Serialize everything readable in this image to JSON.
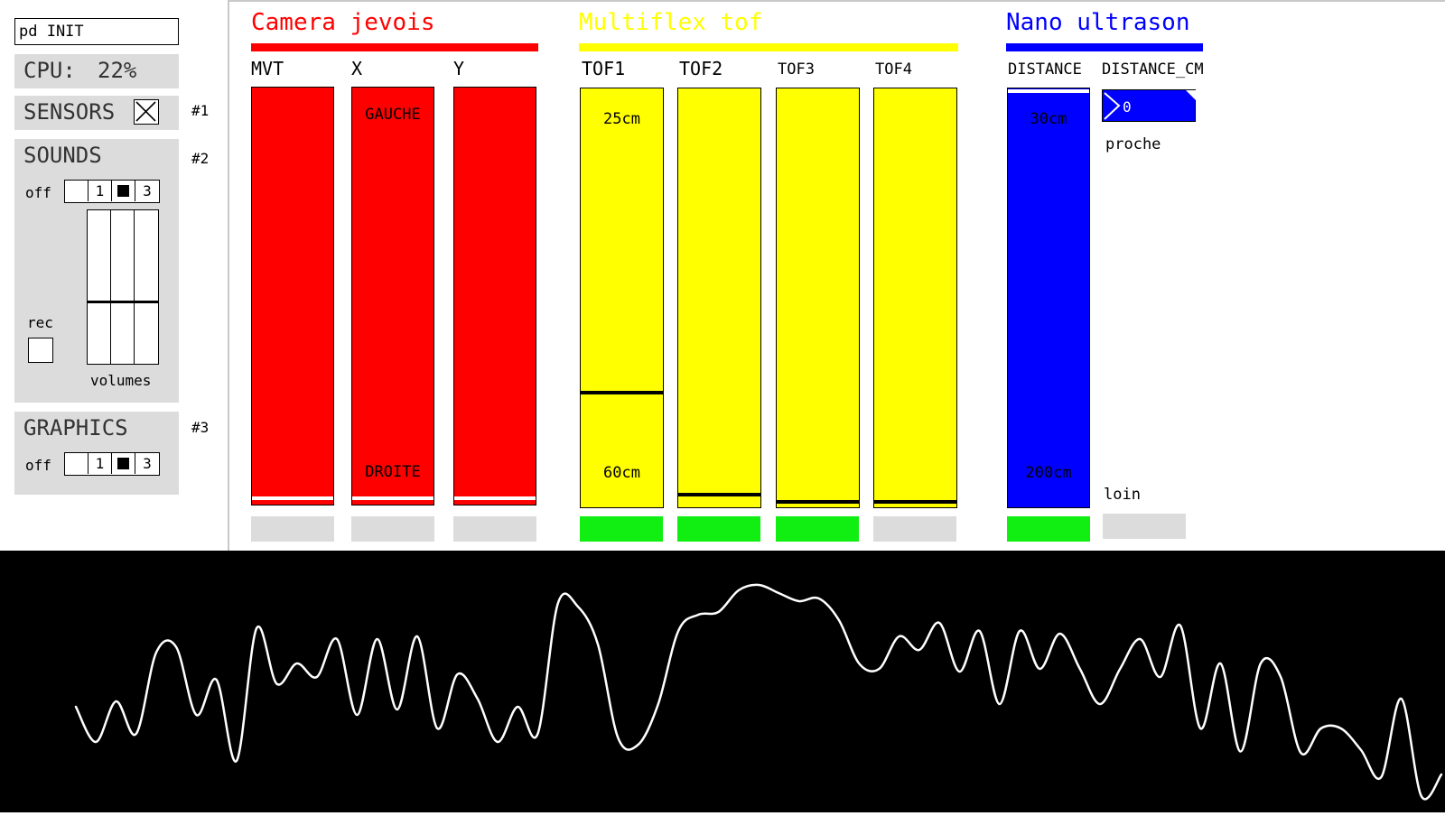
{
  "left": {
    "message": "pd INIT",
    "cpu_label": "CPU:",
    "cpu_value": "22%",
    "sensors": {
      "label": "SENSORS",
      "toggle_on": true,
      "tag": "#1"
    },
    "sounds": {
      "label": "SOUNDS",
      "tag": "#2",
      "off_label": "off",
      "radio": [
        "",
        "1",
        "",
        "3"
      ],
      "selected_index": 2,
      "rec_label": "rec",
      "volumes_label": "volumes",
      "volume_levels": [
        0.4,
        0.4,
        0.4
      ]
    },
    "graphics": {
      "label": "GRAPHICS",
      "tag": "#3",
      "off_label": "off",
      "radio": [
        "",
        "1",
        "",
        "3"
      ],
      "selected_index": 2
    }
  },
  "sections": {
    "camera": {
      "title": "Camera jevois",
      "color": "#ff0000"
    },
    "multiflex": {
      "title": "Multiflex tof",
      "color": "#ffff00"
    },
    "nano": {
      "title": "Nano ultrason",
      "color": "#0000ff"
    }
  },
  "camera_bars": [
    {
      "label": "MVT",
      "top_text": "",
      "bottom_text": "",
      "level": 0.01,
      "indicator_on": false
    },
    {
      "label": "X",
      "top_text": "GAUCHE",
      "bottom_text": "DROITE",
      "level": 0.01,
      "indicator_on": false
    },
    {
      "label": "Y",
      "top_text": "",
      "bottom_text": "",
      "level": 0.01,
      "indicator_on": false
    }
  ],
  "tof_bars": [
    {
      "label": "TOF1",
      "top_text": "25cm",
      "bottom_text": "60cm",
      "level": 0.27,
      "indicator_on": true
    },
    {
      "label": "TOF2",
      "top_text": "",
      "bottom_text": "",
      "level": 0.025,
      "indicator_on": true
    },
    {
      "label": "TOF3",
      "top_text": "",
      "bottom_text": "",
      "level": 0.008,
      "indicator_on": true
    },
    {
      "label": "TOF4",
      "top_text": "",
      "bottom_text": "",
      "level": 0.008,
      "indicator_on": false
    }
  ],
  "nano": {
    "distance_label": "DISTANCE",
    "distance_cm_label": "DISTANCE_CM",
    "distance_level": 0.99,
    "distance_top_text": "30cm",
    "distance_bottom_text": "200cm",
    "distance_indicator_on": true,
    "number_value": "0",
    "proche_label": "proche",
    "loin_label": "loin",
    "loin_indicator_on": false
  },
  "colors": {
    "indicator_on": "#11ee11",
    "indicator_off": "#dcdcdc",
    "waveform": "#ffffff"
  },
  "waveform": [
    -0.22,
    -0.48,
    -0.18,
    -0.42,
    0.18,
    0.22,
    -0.28,
    -0.02,
    -0.62,
    0.36,
    -0.05,
    0.1,
    0.0,
    0.28,
    -0.28,
    0.28,
    -0.24,
    0.3,
    -0.38,
    0.02,
    -0.16,
    -0.48,
    -0.22,
    -0.42,
    0.54,
    0.52,
    0.24,
    -0.45,
    -0.5,
    -0.2,
    0.34,
    0.46,
    0.48,
    0.64,
    0.68,
    0.62,
    0.56,
    0.58,
    0.42,
    0.1,
    0.06,
    0.3,
    0.2,
    0.4,
    0.04,
    0.34,
    -0.2,
    0.34,
    0.06,
    0.32,
    0.06,
    -0.2,
    0.06,
    0.28,
    0.0,
    0.38,
    -0.38,
    0.1,
    -0.55,
    0.1,
    0.0,
    -0.56,
    -0.38,
    -0.38,
    -0.54,
    -0.74,
    -0.16,
    -0.88,
    -0.72
  ]
}
